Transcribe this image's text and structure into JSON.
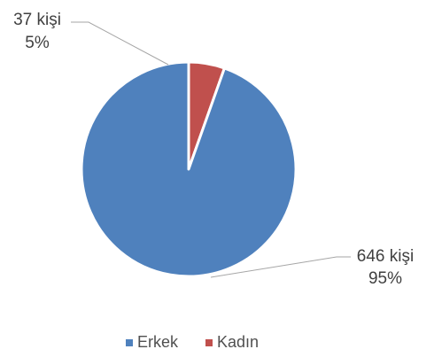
{
  "chart_data": {
    "type": "pie",
    "title": "",
    "series": [
      {
        "name": "Erkek",
        "value": 646,
        "count_label": "646 kişi",
        "percent_label": "95%",
        "color": "#4F81BD"
      },
      {
        "name": "Kadın",
        "value": 37,
        "count_label": "37 kişi",
        "percent_label": "5%",
        "color": "#C0504D"
      }
    ],
    "legend": {
      "position": "bottom",
      "items": [
        "Erkek",
        "Kadın"
      ]
    },
    "data_labels": "outside-with-leader-lines",
    "start_angle": "12 o'clock",
    "direction": "clockwise",
    "slice_separator_color": "#ffffff"
  }
}
